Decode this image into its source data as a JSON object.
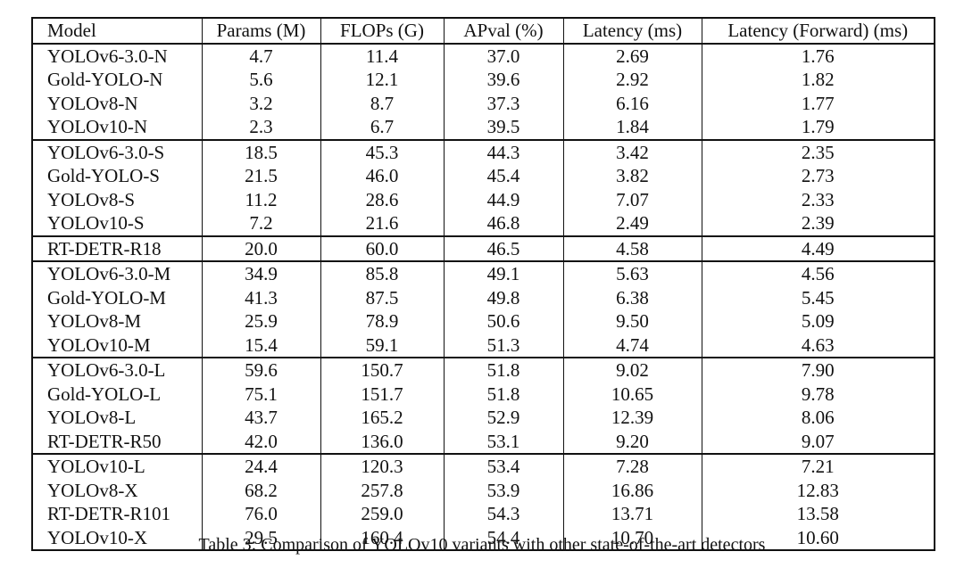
{
  "table": {
    "columns": [
      "Model",
      "Params (M)",
      "FLOPs (G)",
      "APval (%)",
      "Latency (ms)",
      "Latency (Forward) (ms)"
    ],
    "groups": [
      {
        "rows": [
          [
            "YOLOv6-3.0-N",
            "4.7",
            "11.4",
            "37.0",
            "2.69",
            "1.76"
          ],
          [
            "Gold-YOLO-N",
            "5.6",
            "12.1",
            "39.6",
            "2.92",
            "1.82"
          ],
          [
            "YOLOv8-N",
            "3.2",
            "8.7",
            "37.3",
            "6.16",
            "1.77"
          ],
          [
            "YOLOv10-N",
            "2.3",
            "6.7",
            "39.5",
            "1.84",
            "1.79"
          ]
        ]
      },
      {
        "rows": [
          [
            "YOLOv6-3.0-S",
            "18.5",
            "45.3",
            "44.3",
            "3.42",
            "2.35"
          ],
          [
            "Gold-YOLO-S",
            "21.5",
            "46.0",
            "45.4",
            "3.82",
            "2.73"
          ],
          [
            "YOLOv8-S",
            "11.2",
            "28.6",
            "44.9",
            "7.07",
            "2.33"
          ],
          [
            "YOLOv10-S",
            "7.2",
            "21.6",
            "46.8",
            "2.49",
            "2.39"
          ]
        ]
      },
      {
        "rows": [
          [
            "RT-DETR-R18",
            "20.0",
            "60.0",
            "46.5",
            "4.58",
            "4.49"
          ]
        ]
      },
      {
        "rows": [
          [
            "YOLOv6-3.0-M",
            "34.9",
            "85.8",
            "49.1",
            "5.63",
            "4.56"
          ],
          [
            "Gold-YOLO-M",
            "41.3",
            "87.5",
            "49.8",
            "6.38",
            "5.45"
          ],
          [
            "YOLOv8-M",
            "25.9",
            "78.9",
            "50.6",
            "9.50",
            "5.09"
          ],
          [
            "YOLOv10-M",
            "15.4",
            "59.1",
            "51.3",
            "4.74",
            "4.63"
          ]
        ]
      },
      {
        "rows": [
          [
            "YOLOv6-3.0-L",
            "59.6",
            "150.7",
            "51.8",
            "9.02",
            "7.90"
          ],
          [
            "Gold-YOLO-L",
            "75.1",
            "151.7",
            "51.8",
            "10.65",
            "9.78"
          ],
          [
            "YOLOv8-L",
            "43.7",
            "165.2",
            "52.9",
            "12.39",
            "8.06"
          ],
          [
            "RT-DETR-R50",
            "42.0",
            "136.0",
            "53.1",
            "9.20",
            "9.07"
          ]
        ]
      },
      {
        "rows": [
          [
            "YOLOv10-L",
            "24.4",
            "120.3",
            "53.4",
            "7.28",
            "7.21"
          ],
          [
            "YOLOv8-X",
            "68.2",
            "257.8",
            "53.9",
            "16.86",
            "12.83"
          ],
          [
            "RT-DETR-R101",
            "76.0",
            "259.0",
            "54.3",
            "13.71",
            "13.58"
          ],
          [
            "YOLOv10-X",
            "29.5",
            "160.4",
            "54.4",
            "10.70",
            "10.60"
          ]
        ]
      }
    ],
    "caption": "Table 3: Comparison of YOLOv10 variants with other state-of-the-art detectors"
  }
}
